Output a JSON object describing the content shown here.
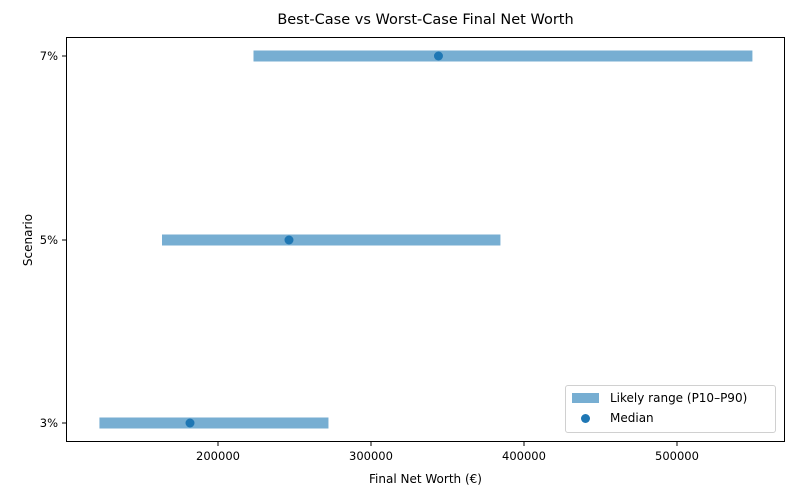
{
  "chart_data": {
    "type": "range-bar",
    "orientation": "horizontal",
    "title": "Best-Case vs Worst-Case Final Net Worth",
    "xlabel": "Final Net Worth (€)",
    "ylabel": "Scenario",
    "categories": [
      "3%",
      "5%",
      "7%"
    ],
    "series": [
      {
        "name": "Likely range (P10–P90)",
        "kind": "range",
        "color": "#77aed2",
        "low": [
          122500,
          163400,
          223200
        ],
        "high": [
          272200,
          384600,
          549300
        ]
      },
      {
        "name": "Median",
        "kind": "scatter",
        "color": "#1f77b4",
        "values": [
          181700,
          246400,
          344100
        ]
      }
    ],
    "xlim": [
      100650,
      570600
    ],
    "xticks": [
      200000,
      300000,
      400000,
      500000
    ],
    "xtick_labels": [
      "200000",
      "300000",
      "400000",
      "500000"
    ],
    "yticks": [
      "3%",
      "5%",
      "7%"
    ],
    "grid": false,
    "legend": {
      "position": "lower right",
      "entries": [
        "Likely range (P10–P90)",
        "Median"
      ]
    }
  },
  "labels": {
    "title": "Best-Case vs Worst-Case Final Net Worth",
    "xlabel": "Final Net Worth (€)",
    "ylabel": "Scenario",
    "legend_range": "Likely range (P10–P90)",
    "legend_median": "Median"
  }
}
